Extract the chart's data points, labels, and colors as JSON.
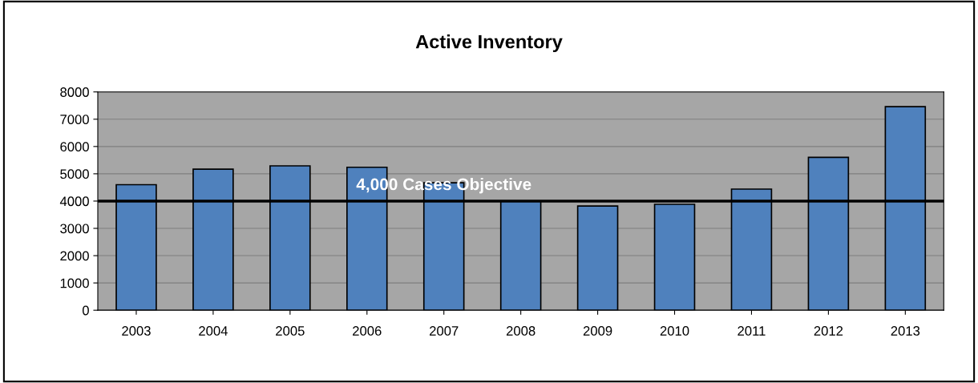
{
  "chart_data": {
    "type": "bar",
    "title": "Active Inventory",
    "categories": [
      "2003",
      "2004",
      "2005",
      "2006",
      "2007",
      "2008",
      "2009",
      "2010",
      "2011",
      "2012",
      "2013"
    ],
    "values": [
      4600,
      5170,
      5290,
      5240,
      4670,
      4000,
      3820,
      3880,
      4440,
      5600,
      7460
    ],
    "color": "#4f81bd",
    "ylim": [
      0,
      8000
    ],
    "yticks": [
      0,
      1000,
      2000,
      3000,
      4000,
      5000,
      6000,
      7000,
      8000
    ],
    "grid": "y",
    "ref_lines": [
      {
        "axis": "y",
        "value": 4000,
        "label": "4,000 Cases Objective",
        "color": "#000000",
        "line_style": "solid"
      }
    ]
  }
}
